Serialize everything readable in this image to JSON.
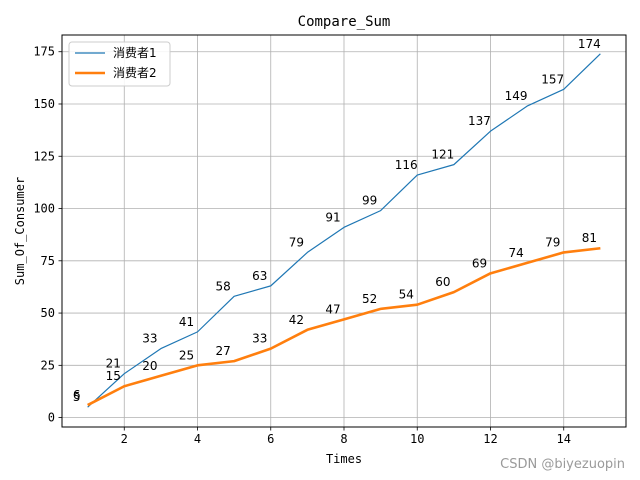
{
  "chart_data": {
    "type": "line",
    "title": "Compare_Sum",
    "xlabel": "Times",
    "ylabel": "Sum_Of_Consumer",
    "x": [
      1,
      2,
      3,
      4,
      5,
      6,
      7,
      8,
      9,
      10,
      11,
      12,
      13,
      14,
      15
    ],
    "xlim": [
      0.3,
      15.7
    ],
    "ylim": [
      -4.5,
      183
    ],
    "xticks": [
      2,
      4,
      6,
      8,
      10,
      12,
      14
    ],
    "yticks": [
      0,
      25,
      50,
      75,
      100,
      125,
      150,
      175
    ],
    "grid": true,
    "legend_position": "top-left",
    "series": [
      {
        "name": "消费者1",
        "color": "#1f77b4",
        "width": "thin",
        "values": [
          5,
          21,
          33,
          41,
          58,
          63,
          79,
          91,
          99,
          116,
          121,
          137,
          149,
          157,
          174
        ]
      },
      {
        "name": "消费者2",
        "color": "#ff7f0e",
        "width": "thick",
        "values": [
          6,
          15,
          20,
          25,
          27,
          33,
          42,
          47,
          52,
          54,
          60,
          69,
          74,
          79,
          81
        ]
      }
    ]
  },
  "watermark": "CSDN @biyezuopin"
}
